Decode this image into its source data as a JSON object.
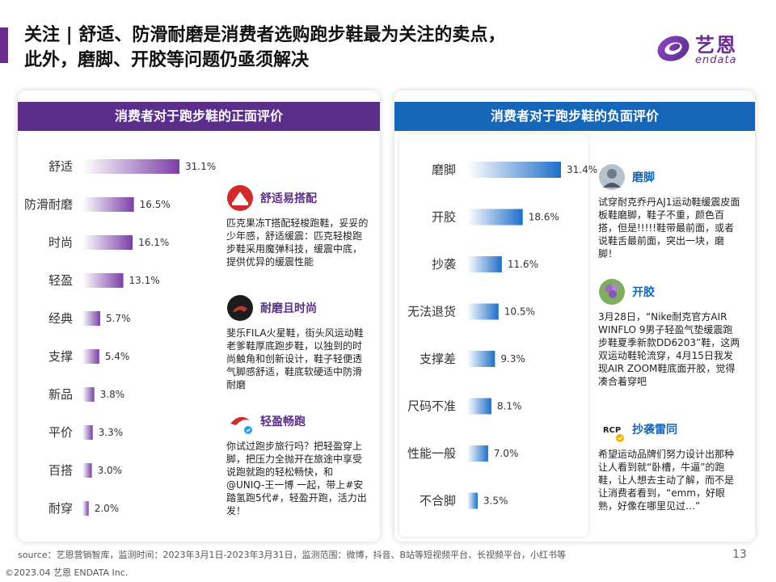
{
  "headline": {
    "line1": "关注 | 舒适、防滑耐磨是消费者选购跑步鞋最为关注的卖点，",
    "line2": "此外，磨脚、开胶等问题仍亟须解决"
  },
  "logo": {
    "cn": "艺恩",
    "en": "endata"
  },
  "colors": {
    "accent": "#6a2c91",
    "left_header": "#5b2e8c",
    "right_header": "#1565b8",
    "left_bar": "#7b3fa8",
    "right_bar": "#1f6fc8"
  },
  "chart_data": [
    {
      "type": "bar",
      "orientation": "horizontal",
      "title": "消费者对于跑步鞋的正面评价",
      "categories": [
        "舒适",
        "防滑耐磨",
        "时尚",
        "轻盈",
        "经典",
        "支撑",
        "新品",
        "平价",
        "百搭",
        "耐穿"
      ],
      "values": [
        31.1,
        16.5,
        16.1,
        13.1,
        5.7,
        5.4,
        3.8,
        3.3,
        3.0,
        2.0
      ],
      "value_labels": [
        "31.1%",
        "16.5%",
        "16.1%",
        "13.1%",
        "5.7%",
        "5.4%",
        "3.8%",
        "3.3%",
        "3.0%",
        "2.0%"
      ],
      "unit": "%",
      "xlim": [
        0,
        31.1
      ],
      "grid": false,
      "legend": "none"
    },
    {
      "type": "bar",
      "orientation": "horizontal",
      "title": "消费者对于跑步鞋的负面评价",
      "categories": [
        "磨脚",
        "开胶",
        "抄袭",
        "无法退货",
        "支撑差",
        "尺码不准",
        "性能一般",
        "不合脚"
      ],
      "values": [
        31.4,
        18.6,
        11.6,
        10.5,
        9.3,
        8.1,
        7.0,
        3.5
      ],
      "value_labels": [
        "31.4%",
        "18.6%",
        "11.6%",
        "10.5%",
        "9.3%",
        "8.1%",
        "7.0%",
        "3.5%"
      ],
      "unit": "%",
      "xlim": [
        0,
        31.4
      ],
      "grid": false,
      "legend": "none"
    }
  ],
  "left_callouts": [
    {
      "icon": "peak-logo-icon",
      "title": "舒适易搭配",
      "body": "匹克果冻T搭配轻梭跑鞋，妥妥的少年感，舒适缓震：匹克轻梭跑步鞋采用魔弹科技，缓震中底，提供优异的缓震性能"
    },
    {
      "icon": "fila-logo-icon",
      "title": "耐磨且时尚",
      "body": "斐乐FILA火星鞋，街头风运动鞋老爹鞋厚底跑步鞋，以独到的时尚触角和创新设计，鞋子轻便透气脚感舒适，鞋底软硬适中防滑耐磨"
    },
    {
      "icon": "anta-logo-icon",
      "title": "轻盈畅跑",
      "body": "你试过跑步旅行吗？把轻盈穿上脚，把压力全抛开在旅途中享受说跑就跑的轻松畅快，和@UNIQ-王一博 一起，带上#安踏氢跑5代#，轻盈开跑，活力出发！"
    }
  ],
  "right_callouts": [
    {
      "icon": "user-avatar-icon",
      "title": "磨脚",
      "body": "试穿耐克乔丹AJ1运动鞋缓震皮面板鞋磨脚，鞋子不重，颜色百搭，但是!!!!!鞋带最前面，或者说鞋舌最前面，突出一块，磨脚！"
    },
    {
      "icon": "flower-avatar-icon",
      "title": "开胶",
      "body": "3月28日，“Nike耐克官方AIR WINFLO 9男子轻盈气垫缓震跑步鞋夏季新款DD6203”鞋，这两双运动鞋轮流穿，4月15日我发现AIR ZOOM鞋底面开胶，觉得凑合着穿吧"
    },
    {
      "icon": "rcp-logo-icon",
      "title": "抄袭雷同",
      "body": "希望运动品牌们努力设计出那种让人看到就“卧槽，牛逼”的跑鞋，让人想去主动了解，而不是让消费者看到，“emm，好眼熟，好像在哪里见过…”"
    }
  ],
  "footer": {
    "source": "source：艺恩营销智库，监测时间：2023年3月1日-2023年3月31日，监测范围：微博，抖音、B站等短视频平台、长视频平台，小红书等",
    "copyright": "©2023.04 艺恩 ENDATA Inc.",
    "page": "13"
  }
}
